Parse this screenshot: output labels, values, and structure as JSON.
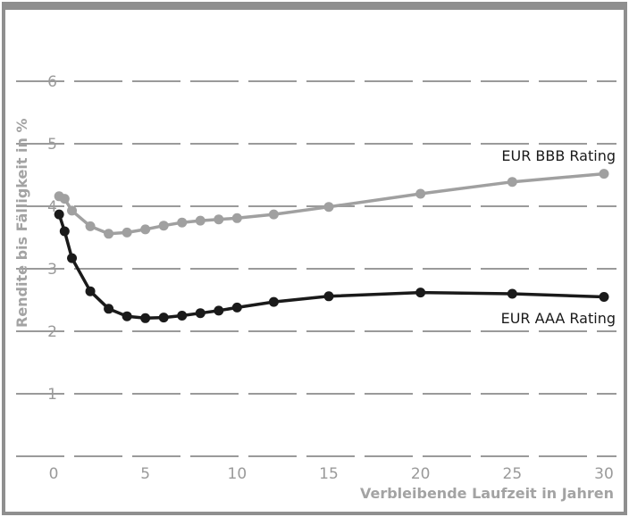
{
  "chart_data": {
    "type": "line",
    "title": "",
    "xlabel": "Verbleibende Laufzeit in Jahren",
    "ylabel": "Rendite bis Fälligkeit in %",
    "xlim": [
      0,
      30
    ],
    "ylim": [
      0,
      6
    ],
    "x_ticks": [
      0,
      5,
      10,
      15,
      20,
      25,
      30
    ],
    "y_ticks": [
      1,
      2,
      3,
      4,
      5,
      6
    ],
    "grid": "horizontal dashed",
    "legend": "inline labels at right end of each line",
    "series": [
      {
        "name": "EUR BBB Rating",
        "color": "#a0a0a0",
        "points": [
          [
            0.3,
            4.16
          ],
          [
            0.6,
            4.12
          ],
          [
            1,
            3.93
          ],
          [
            2,
            3.68
          ],
          [
            3,
            3.56
          ],
          [
            4,
            3.58
          ],
          [
            5,
            3.63
          ],
          [
            6,
            3.69
          ],
          [
            7,
            3.74
          ],
          [
            8,
            3.77
          ],
          [
            9,
            3.79
          ],
          [
            10,
            3.81
          ],
          [
            12,
            3.87
          ],
          [
            15,
            3.99
          ],
          [
            20,
            4.2
          ],
          [
            25,
            4.39
          ],
          [
            30,
            4.52
          ]
        ]
      },
      {
        "name": "EUR AAA Rating",
        "color": "#1a1a1a",
        "points": [
          [
            0.3,
            3.87
          ],
          [
            0.6,
            3.6
          ],
          [
            1,
            3.17
          ],
          [
            2,
            2.64
          ],
          [
            3,
            2.36
          ],
          [
            4,
            2.24
          ],
          [
            5,
            2.21
          ],
          [
            6,
            2.22
          ],
          [
            7,
            2.25
          ],
          [
            8,
            2.29
          ],
          [
            9,
            2.33
          ],
          [
            10,
            2.38
          ],
          [
            12,
            2.47
          ],
          [
            15,
            2.56
          ],
          [
            20,
            2.62
          ],
          [
            25,
            2.6
          ],
          [
            30,
            2.55
          ]
        ]
      }
    ]
  }
}
